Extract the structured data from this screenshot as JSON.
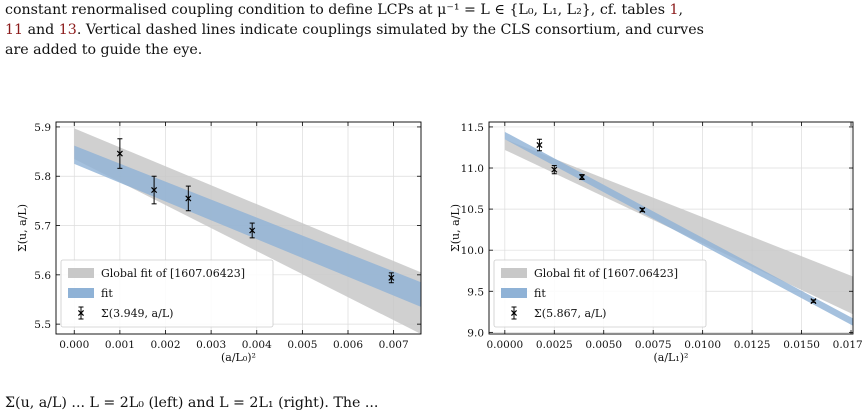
{
  "caption": {
    "line1": "constant renormalised coupling condition to define LCPs at μ⁻¹ = L ∈ {L₀, L₁, L₂}, cf. tables ",
    "ref1": "1",
    "line2_ref_a": "11",
    "line2_mid": " and ",
    "line2_ref_b": "13",
    "line2_rest": ". Vertical dashed lines indicate couplings simulated by the CLS consortium, and curves",
    "line3": "are added to guide the eye."
  },
  "bottom_text": "Σ(u, a/L) ... L = 2L₀ (left) and L = 2L₁ (right). The ...",
  "chart_data": [
    {
      "type": "scatter",
      "xlabel": "(a/L₀)²",
      "ylabel": "Σ(u, a/L)",
      "xlim": [
        -0.0004,
        0.0076
      ],
      "ylim": [
        5.48,
        5.91
      ],
      "xticks": [
        "0.000",
        "0.001",
        "0.002",
        "0.003",
        "0.004",
        "0.005",
        "0.006",
        "0.007"
      ],
      "xtick_values": [
        0.0,
        0.001,
        0.002,
        0.003,
        0.004,
        0.005,
        0.006,
        0.007
      ],
      "yticks": [
        "5.5",
        "5.6",
        "5.7",
        "5.8",
        "5.9"
      ],
      "ytick_values": [
        5.5,
        5.6,
        5.7,
        5.8,
        5.9
      ],
      "grid": true,
      "legend_position": "bottom-left",
      "legend": [
        "Global fit of [1607.06423]",
        "fit",
        "Σ(3.949, a/L)"
      ],
      "global_band": {
        "x": [
          0.0,
          0.0076
        ],
        "upper": [
          5.897,
          5.605
        ],
        "lower": [
          5.835,
          5.48
        ]
      },
      "fit_band": {
        "x": [
          0.0,
          0.0076
        ],
        "upper": [
          5.862,
          5.585
        ],
        "lower": [
          5.825,
          5.535
        ]
      },
      "points": [
        {
          "x": 0.001,
          "y": 5.846,
          "err": 0.03
        },
        {
          "x": 0.00175,
          "y": 5.772,
          "err": 0.028
        },
        {
          "x": 0.0025,
          "y": 5.755,
          "err": 0.025
        },
        {
          "x": 0.0039,
          "y": 5.69,
          "err": 0.015
        },
        {
          "x": 0.00695,
          "y": 5.594,
          "err": 0.01
        }
      ],
      "colors": {
        "global_band": "#c8c8c8",
        "fit_band": "#8fb2d6",
        "fit_overlap": "#8ba0b5",
        "points": "#000000"
      }
    },
    {
      "type": "scatter",
      "xlabel": "(a/L₁)²",
      "ylabel": "Σ(u, a/L)",
      "xlim": [
        -0.0008,
        0.0176
      ],
      "ylim": [
        8.98,
        11.56
      ],
      "xticks": [
        "0.0000",
        "0.0025",
        "0.0050",
        "0.0075",
        "0.0100",
        "0.0125",
        "0.0150",
        "0.0175"
      ],
      "xtick_values": [
        0.0,
        0.0025,
        0.005,
        0.0075,
        0.01,
        0.0125,
        0.015,
        0.0175
      ],
      "yticks": [
        "9.0",
        "9.5",
        "10.0",
        "10.5",
        "11.0",
        "11.5"
      ],
      "ytick_values": [
        9.0,
        9.5,
        10.0,
        10.5,
        11.0,
        11.5
      ],
      "grid": true,
      "legend_position": "bottom-left",
      "legend": [
        "Global fit of [1607.06423]",
        "fit",
        "Σ(5.867, a/L)"
      ],
      "global_band": {
        "x": [
          0.0,
          0.0176
        ],
        "upper": [
          11.35,
          9.68
        ],
        "lower": [
          11.22,
          9.22
        ]
      },
      "fit_band": {
        "x": [
          0.0,
          0.0176
        ],
        "upper": [
          11.44,
          9.17
        ],
        "lower": [
          11.35,
          9.08
        ]
      },
      "points": [
        {
          "x": 0.00175,
          "y": 11.28,
          "err": 0.07
        },
        {
          "x": 0.0025,
          "y": 10.98,
          "err": 0.05
        },
        {
          "x": 0.0039,
          "y": 10.89,
          "err": 0.03
        },
        {
          "x": 0.00695,
          "y": 10.49,
          "err": 0.02
        },
        {
          "x": 0.0156,
          "y": 9.38,
          "err": 0.015
        }
      ],
      "colors": {
        "global_band": "#c8c8c8",
        "fit_band": "#8fb2d6",
        "fit_overlap": "#8ba0b5",
        "points": "#000000"
      }
    }
  ]
}
